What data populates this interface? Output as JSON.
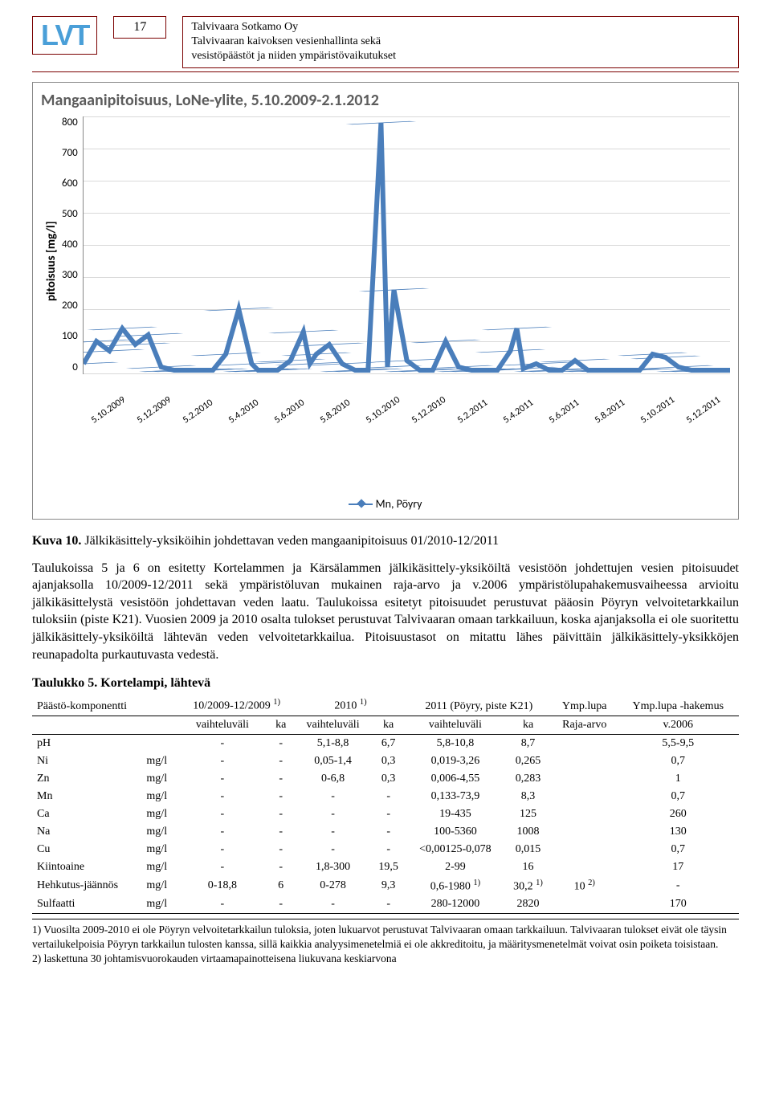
{
  "header": {
    "logo_text": "LVT",
    "page_number": "17",
    "line1": "Talvivaara Sotkamo Oy",
    "line2": "Talvivaaran kaivoksen vesienhallinta sekä",
    "line3": "vesistöpäästöt ja niiden ympäristövaikutukset"
  },
  "chart": {
    "title": "Mangaanipitoisuus, LoNe-ylite, 5.10.2009-2.1.2012",
    "type": "line",
    "y_label": "pitoisuus [mg/l]",
    "ylim": [
      0,
      800
    ],
    "ytick_step": 100,
    "yticks": [
      "800",
      "700",
      "600",
      "500",
      "400",
      "300",
      "200",
      "100",
      "0"
    ],
    "xticks": [
      "5.10.2009",
      "5.12.2009",
      "5.2.2010",
      "5.4.2010",
      "5.6.2010",
      "5.8.2010",
      "5.10.2010",
      "5.12.2010",
      "5.2.2011",
      "5.4.2011",
      "5.6.2011",
      "5.8.2011",
      "5.10.2011",
      "5.12.2011"
    ],
    "line_color": "#4a7ebb",
    "grid_color": "#d9d9d9",
    "background_color": "#ffffff",
    "legend_label": "Mn, Pöyry",
    "series": [
      {
        "x": 0,
        "y": 30
      },
      {
        "x": 2,
        "y": 100
      },
      {
        "x": 4,
        "y": 70
      },
      {
        "x": 6,
        "y": 140
      },
      {
        "x": 8,
        "y": 90
      },
      {
        "x": 10,
        "y": 120
      },
      {
        "x": 12,
        "y": 20
      },
      {
        "x": 14,
        "y": 10
      },
      {
        "x": 16,
        "y": 10
      },
      {
        "x": 18,
        "y": 10
      },
      {
        "x": 20,
        "y": 10
      },
      {
        "x": 22,
        "y": 60
      },
      {
        "x": 24,
        "y": 200
      },
      {
        "x": 26,
        "y": 30
      },
      {
        "x": 27,
        "y": 10
      },
      {
        "x": 28,
        "y": 10
      },
      {
        "x": 30,
        "y": 10
      },
      {
        "x": 32,
        "y": 40
      },
      {
        "x": 34,
        "y": 130
      },
      {
        "x": 35,
        "y": 30
      },
      {
        "x": 36,
        "y": 60
      },
      {
        "x": 38,
        "y": 90
      },
      {
        "x": 40,
        "y": 30
      },
      {
        "x": 42,
        "y": 10
      },
      {
        "x": 44,
        "y": 10
      },
      {
        "x": 46,
        "y": 780
      },
      {
        "x": 47,
        "y": 20
      },
      {
        "x": 48,
        "y": 260
      },
      {
        "x": 50,
        "y": 40
      },
      {
        "x": 52,
        "y": 10
      },
      {
        "x": 54,
        "y": 10
      },
      {
        "x": 56,
        "y": 100
      },
      {
        "x": 58,
        "y": 20
      },
      {
        "x": 60,
        "y": 10
      },
      {
        "x": 62,
        "y": 10
      },
      {
        "x": 64,
        "y": 10
      },
      {
        "x": 66,
        "y": 70
      },
      {
        "x": 67,
        "y": 140
      },
      {
        "x": 68,
        "y": 15
      },
      {
        "x": 70,
        "y": 30
      },
      {
        "x": 72,
        "y": 10
      },
      {
        "x": 74,
        "y": 10
      },
      {
        "x": 76,
        "y": 40
      },
      {
        "x": 78,
        "y": 10
      },
      {
        "x": 80,
        "y": 10
      },
      {
        "x": 82,
        "y": 10
      },
      {
        "x": 84,
        "y": 10
      },
      {
        "x": 86,
        "y": 10
      },
      {
        "x": 88,
        "y": 60
      },
      {
        "x": 90,
        "y": 50
      },
      {
        "x": 92,
        "y": 20
      },
      {
        "x": 94,
        "y": 10
      },
      {
        "x": 96,
        "y": 10
      },
      {
        "x": 98,
        "y": 10
      },
      {
        "x": 100,
        "y": 10
      }
    ]
  },
  "caption": {
    "label": "Kuva 10.",
    "text": "Jälkikäsittely-yksiköihin johdettavan veden mangaanipitoisuus 01/2010-12/2011"
  },
  "body_text": "Taulukoissa 5 ja 6 on esitetty Kortelammen ja Kärsälammen jälkikäsittely-yksiköiltä vesistöön johdettujen vesien pitoisuudet ajanjaksolla 10/2009-12/2011 sekä ympäristöluvan mukainen raja-arvo ja v.2006 ympäristölupahakemusvaiheessa arvioitu jälkikäsittelystä vesistöön johdettavan veden laatu. Taulukoissa esitetyt pitoisuudet perustuvat pääosin Pöyryn velvoitetarkkailun tuloksiin (piste K21). Vuosien 2009 ja 2010 osalta tulokset perustuvat Talvivaaran omaan tarkkailuun, koska ajanjaksolla ei ole suoritettu jälkikäsittely-yksiköiltä lähtevän veden velvoitetarkkailua. Pitoisuustasot on mitattu lähes päivittäin jälkikäsittely-yksikköjen reunapadolta purkautuvasta vedestä.",
  "table": {
    "title": "Taulukko 5. Kortelampi, lähtevä",
    "headers_row1": {
      "c1": "Päästö-komponentti",
      "c2": "10/2009-12/2009 ",
      "c2_sup": "1)",
      "c3": "2010 ",
      "c3_sup": "1)",
      "c4": "2011 (Pöyry, piste K21)",
      "c5": "Ymp.lupa",
      "c6": "Ymp.lupa -hakemus"
    },
    "headers_row2": {
      "c2a": "vaihteluväli",
      "c2b": "ka",
      "c3a": "vaihteluväli",
      "c3b": "ka",
      "c4a": "vaihteluväli",
      "c4b": "ka",
      "c5": "Raja-arvo",
      "c6": "v.2006"
    },
    "rows": [
      {
        "name": "pH",
        "unit": "",
        "r1": "-",
        "k1": "-",
        "r2": "5,1-8,8",
        "k2": "6,7",
        "r3": "5,8-10,8",
        "k3": "8,7",
        "lim": "",
        "hak": "5,5-9,5"
      },
      {
        "name": "Ni",
        "unit": "mg/l",
        "r1": "-",
        "k1": "-",
        "r2": "0,05-1,4",
        "k2": "0,3",
        "r3": "0,019-3,26",
        "k3": "0,265",
        "lim": "",
        "hak": "0,7"
      },
      {
        "name": "Zn",
        "unit": "mg/l",
        "r1": "-",
        "k1": "-",
        "r2": "0-6,8",
        "k2": "0,3",
        "r3": "0,006-4,55",
        "k3": "0,283",
        "lim": "",
        "hak": "1"
      },
      {
        "name": "Mn",
        "unit": "mg/l",
        "r1": "-",
        "k1": "-",
        "r2": "-",
        "k2": "-",
        "r3": "0,133-73,9",
        "k3": "8,3",
        "lim": "",
        "hak": "0,7"
      },
      {
        "name": "Ca",
        "unit": "mg/l",
        "r1": "-",
        "k1": "-",
        "r2": "-",
        "k2": "-",
        "r3": "19-435",
        "k3": "125",
        "lim": "",
        "hak": "260"
      },
      {
        "name": "Na",
        "unit": "mg/l",
        "r1": "-",
        "k1": "-",
        "r2": "-",
        "k2": "-",
        "r3": "100-5360",
        "k3": "1008",
        "lim": "",
        "hak": "130"
      },
      {
        "name": "Cu",
        "unit": "mg/l",
        "r1": "-",
        "k1": "-",
        "r2": "-",
        "k2": "-",
        "r3": "<0,00125-0,078",
        "k3": "0,015",
        "lim": "",
        "hak": "0,7"
      },
      {
        "name": "Kiintoaine",
        "unit": "mg/l",
        "r1": "-",
        "k1": "-",
        "r2": "1,8-300",
        "k2": "19,5",
        "r3": "2-99",
        "k3": "16",
        "lim": "",
        "hak": "17"
      },
      {
        "name": "Hehkutus-jäännös",
        "unit": "mg/l",
        "r1": "0-18,8",
        "k1": "6",
        "r2": "0-278",
        "k2": "9,3",
        "r3": "0,6-1980 ",
        "k3": "30,2 ",
        "r3_sup": "1)",
        "k3_sup": "1)",
        "lim": "10 ",
        "lim_sup": "2)",
        "hak": "-"
      },
      {
        "name": "Sulfaatti",
        "unit": "mg/l",
        "r1": "-",
        "k1": "-",
        "r2": "-",
        "k2": "-",
        "r3": "280-12000",
        "k3": "2820",
        "lim": "",
        "hak": "170"
      }
    ],
    "footnotes": {
      "f1": "1) Vuosilta 2009-2010 ei ole Pöyryn velvoitetarkkailun tuloksia, joten lukuarvot perustuvat Talvivaaran omaan tarkkailuun. Talvivaaran tulokset eivät ole täysin vertailukelpoisia Pöyryn tarkkailun tulosten kanssa, sillä kaikkia analyysimenetelmiä ei ole akkreditoitu, ja määritysmenetelmät voivat osin poiketa toisistaan.",
      "f2": "2) laskettuna 30 johtamisvuorokauden virtaamapainotteisena liukuvana keskiarvona"
    }
  }
}
